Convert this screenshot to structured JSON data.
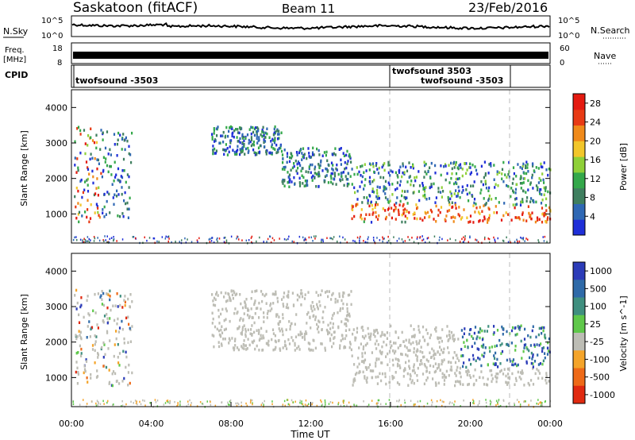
{
  "header": {
    "station": "Saskatoon (fitACF)",
    "beam": "Beam 11",
    "date": "23/Feb/2016"
  },
  "summary": {
    "nsky_label": "N.Sky",
    "nsky_ticks": [
      "10^5",
      "10^0"
    ],
    "nsearch_label": "N.Search",
    "nsearch_ticks": [
      "10^5",
      "10^0"
    ],
    "freq_label_1": "Freq.",
    "freq_label_2": "[MHz]",
    "freq_ticks": [
      "18",
      "8"
    ],
    "nave_label": "Nave",
    "nave_ticks": [
      "60",
      "0"
    ],
    "cpid_label": "CPID",
    "cpid_entries": [
      "twofsound -3503",
      "twofsound 3503",
      "twofsound -3503"
    ]
  },
  "chart_data": [
    {
      "type": "heatmap",
      "title": "",
      "xlabel": "",
      "ylabel": "Slant Range [km]",
      "xlim": [
        "00:00",
        "24:00"
      ],
      "ylim": [
        180,
        4500
      ],
      "yticks": [
        1000,
        2000,
        3000,
        4000
      ],
      "colorbar": {
        "label": "Power [dB]",
        "ticks": [
          4,
          8,
          12,
          16,
          20,
          24,
          28
        ],
        "range": [
          0,
          30
        ],
        "colors": [
          "#1f2fd8",
          "#2f68b4",
          "#3f7f5f",
          "#34a84a",
          "#8fd038",
          "#f2c62a",
          "#f08a1a",
          "#e83a14",
          "#e41a10"
        ]
      },
      "echo_regions": [
        {
          "t_start": 0.1,
          "t_end": 1.5,
          "r_min": 800,
          "r_max": 3500
        },
        {
          "t_start": 1.5,
          "t_end": 3.0,
          "r_min": 900,
          "r_max": 3400
        },
        {
          "t_start": 7.0,
          "t_end": 10.5,
          "r_min": 2700,
          "r_max": 3500
        },
        {
          "t_start": 10.5,
          "t_end": 14.0,
          "r_min": 1800,
          "r_max": 2900
        },
        {
          "t_start": 14.0,
          "t_end": 24.0,
          "r_min": 800,
          "r_max": 2500
        }
      ],
      "ground_band": {
        "r_min": 200,
        "r_max": 400
      }
    },
    {
      "type": "heatmap",
      "title": "",
      "xlabel": "Time UT",
      "ylabel": "Slant Range [km]",
      "xlim": [
        "00:00",
        "24:00"
      ],
      "ylim": [
        180,
        4500
      ],
      "yticks": [
        1000,
        2000,
        3000,
        4000
      ],
      "xticks": [
        "00:00",
        "04:00",
        "08:00",
        "12:00",
        "16:00",
        "20:00",
        "00:00"
      ],
      "colorbar": {
        "label": "Velocity [m s^-1]",
        "ticks": [
          "1000",
          "500",
          "100",
          "25",
          "-25",
          "-100",
          "-500",
          "-1000"
        ],
        "colors": [
          "#2c3cb8",
          "#2f6aa8",
          "#3f8f7f",
          "#5fc84a",
          "#bdbdb5",
          "#f4a42a",
          "#ee6a18",
          "#e02a10"
        ]
      },
      "echo_regions": [
        {
          "t_start": 0.1,
          "t_end": 3.0,
          "r_min": 800,
          "r_max": 3500
        },
        {
          "t_start": 7.0,
          "t_end": 14.0,
          "r_min": 1800,
          "r_max": 3500
        },
        {
          "t_start": 14.0,
          "t_end": 24.0,
          "r_min": 800,
          "r_max": 2500
        }
      ],
      "ground_band": {
        "r_min": 200,
        "r_max": 400
      }
    }
  ],
  "markers": {
    "dashed_times": [
      16.0,
      22.0
    ]
  }
}
